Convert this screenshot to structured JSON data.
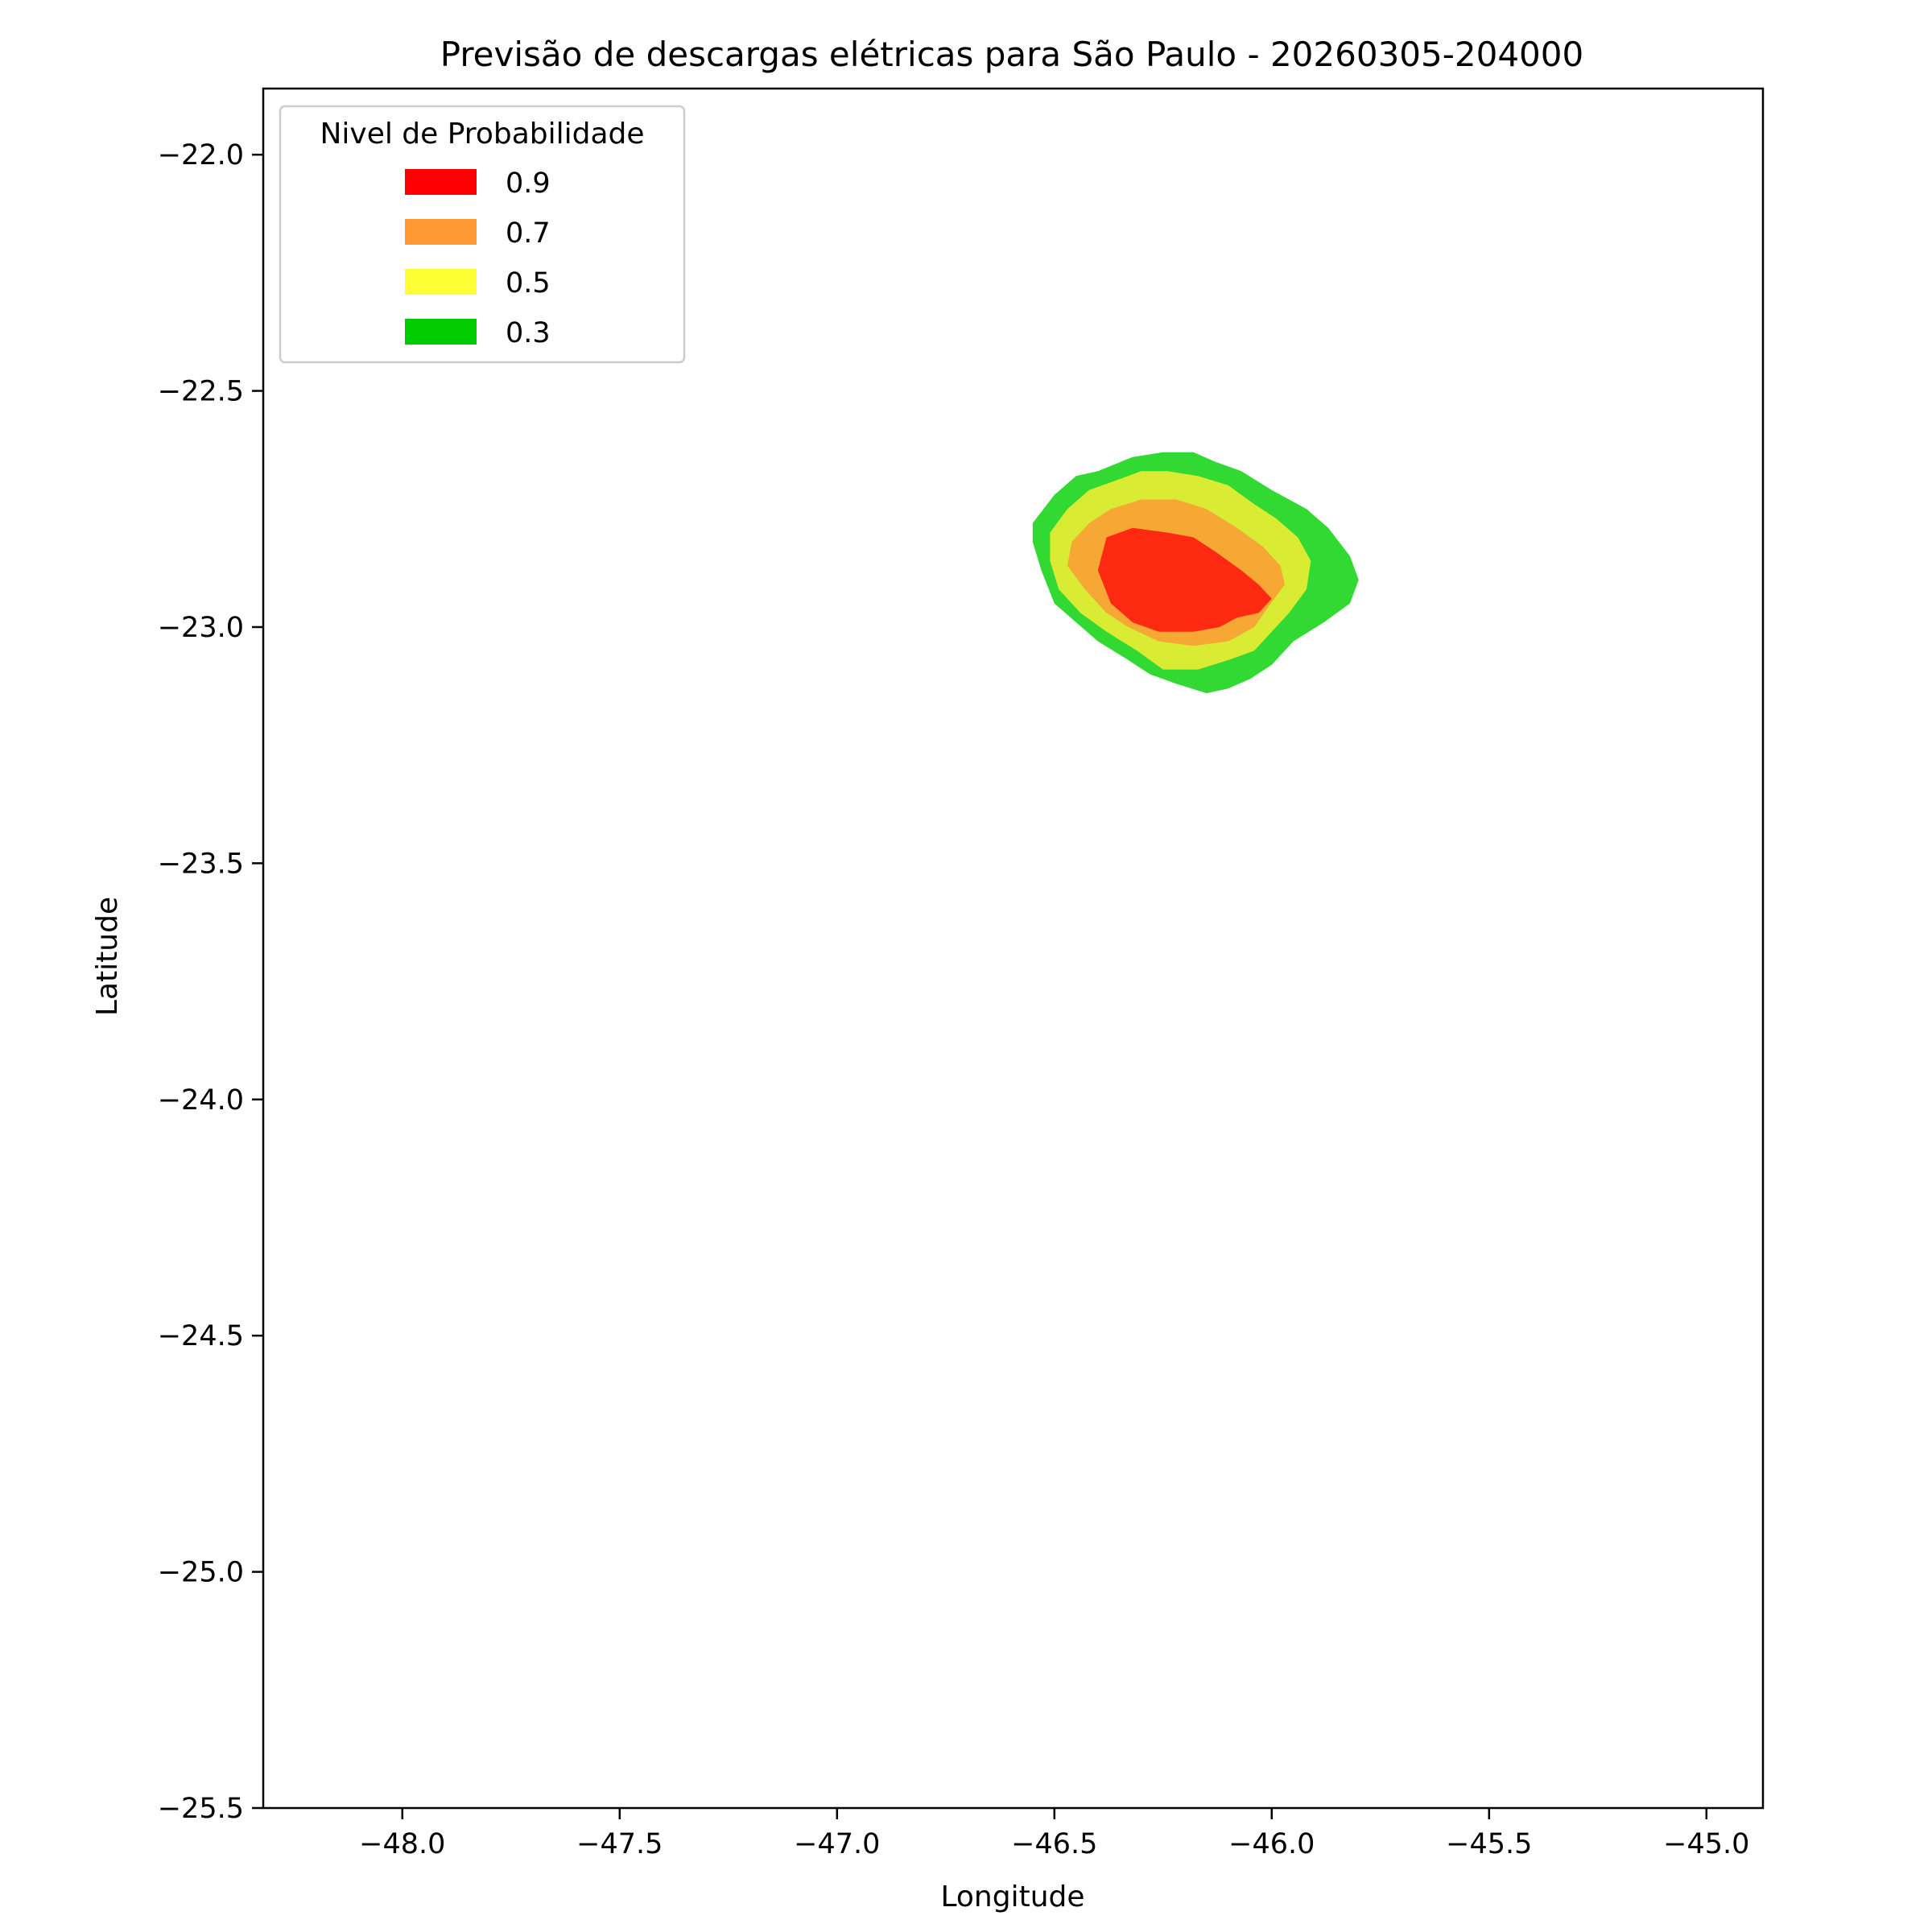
{
  "chart_data": {
    "type": "contourf",
    "title": "Previsão de descargas elétricas para São Paulo - 20260305-204000",
    "xlabel": "Longitude",
    "ylabel": "Latitude",
    "xlim": [
      -48.32,
      -44.87
    ],
    "ylim": [
      -25.5,
      -21.86
    ],
    "xticks": [
      -48.0,
      -47.5,
      -47.0,
      -46.5,
      -46.0,
      -45.5,
      -45.0
    ],
    "yticks": [
      -22.0,
      -22.5,
      -23.0,
      -23.5,
      -24.0,
      -24.5,
      -25.0,
      -25.5
    ],
    "xtick_labels": [
      "−48.0",
      "−47.5",
      "−47.0",
      "−46.5",
      "−46.0",
      "−45.5",
      "−45.0"
    ],
    "ytick_labels": [
      "−22.0",
      "−22.5",
      "−23.0",
      "−23.5",
      "−24.0",
      "−24.5",
      "−25.0",
      "−25.5"
    ],
    "grid": false,
    "legend": {
      "title": "Nivel de Probabilidade",
      "placement": "top-left",
      "entries": [
        {
          "label": "0.9",
          "color": "#ff0000"
        },
        {
          "label": "0.7",
          "color": "#ff9933"
        },
        {
          "label": "0.5",
          "color": "#ffff33"
        },
        {
          "label": "0.3",
          "color": "#00cc00"
        }
      ]
    },
    "levels": [
      {
        "level": "0.3",
        "color": "#33d933",
        "polygon": [
          [
            -46.55,
            -22.78
          ],
          [
            -46.5,
            -22.72
          ],
          [
            -46.45,
            -22.68
          ],
          [
            -46.4,
            -22.67
          ],
          [
            -46.32,
            -22.64
          ],
          [
            -46.25,
            -22.63
          ],
          [
            -46.18,
            -22.63
          ],
          [
            -46.13,
            -22.65
          ],
          [
            -46.07,
            -22.67
          ],
          [
            -46.0,
            -22.71
          ],
          [
            -45.92,
            -22.75
          ],
          [
            -45.87,
            -22.79
          ],
          [
            -45.82,
            -22.85
          ],
          [
            -45.8,
            -22.9
          ],
          [
            -45.82,
            -22.95
          ],
          [
            -45.88,
            -22.99
          ],
          [
            -45.95,
            -23.03
          ],
          [
            -46.0,
            -23.08
          ],
          [
            -46.05,
            -23.11
          ],
          [
            -46.1,
            -23.13
          ],
          [
            -46.15,
            -23.14
          ],
          [
            -46.22,
            -23.12
          ],
          [
            -46.28,
            -23.1
          ],
          [
            -46.33,
            -23.07
          ],
          [
            -46.4,
            -23.03
          ],
          [
            -46.45,
            -22.99
          ],
          [
            -46.5,
            -22.95
          ],
          [
            -46.53,
            -22.88
          ],
          [
            -46.55,
            -22.82
          ]
        ]
      },
      {
        "level": "0.5",
        "color": "#d9eb33",
        "polygon": [
          [
            -46.51,
            -22.8
          ],
          [
            -46.47,
            -22.75
          ],
          [
            -46.42,
            -22.71
          ],
          [
            -46.36,
            -22.69
          ],
          [
            -46.3,
            -22.67
          ],
          [
            -46.24,
            -22.67
          ],
          [
            -46.17,
            -22.68
          ],
          [
            -46.1,
            -22.7
          ],
          [
            -46.04,
            -22.74
          ],
          [
            -45.99,
            -22.77
          ],
          [
            -45.94,
            -22.81
          ],
          [
            -45.91,
            -22.86
          ],
          [
            -45.92,
            -22.92
          ],
          [
            -45.96,
            -22.97
          ],
          [
            -46.0,
            -23.01
          ],
          [
            -46.04,
            -23.05
          ],
          [
            -46.1,
            -23.07
          ],
          [
            -46.17,
            -23.09
          ],
          [
            -46.25,
            -23.09
          ],
          [
            -46.31,
            -23.05
          ],
          [
            -46.38,
            -23.01
          ],
          [
            -46.44,
            -22.97
          ],
          [
            -46.49,
            -22.92
          ],
          [
            -46.51,
            -22.86
          ]
        ]
      },
      {
        "level": "0.7",
        "color": "#f7a733",
        "polygon": [
          [
            -46.46,
            -22.82
          ],
          [
            -46.42,
            -22.78
          ],
          [
            -46.37,
            -22.75
          ],
          [
            -46.3,
            -22.73
          ],
          [
            -46.22,
            -22.73
          ],
          [
            -46.15,
            -22.75
          ],
          [
            -46.08,
            -22.79
          ],
          [
            -46.02,
            -22.83
          ],
          [
            -45.98,
            -22.87
          ],
          [
            -45.97,
            -22.91
          ],
          [
            -46.01,
            -22.96
          ],
          [
            -46.04,
            -23.0
          ],
          [
            -46.1,
            -23.03
          ],
          [
            -46.18,
            -23.04
          ],
          [
            -46.26,
            -23.03
          ],
          [
            -46.33,
            -23.0
          ],
          [
            -46.38,
            -22.97
          ],
          [
            -46.43,
            -22.92
          ],
          [
            -46.47,
            -22.87
          ]
        ]
      },
      {
        "level": "0.9",
        "color": "#ff2a11",
        "polygon": [
          [
            -46.38,
            -22.81
          ],
          [
            -46.32,
            -22.79
          ],
          [
            -46.24,
            -22.8
          ],
          [
            -46.18,
            -22.81
          ],
          [
            -46.13,
            -22.84
          ],
          [
            -46.07,
            -22.88
          ],
          [
            -46.03,
            -22.91
          ],
          [
            -46.0,
            -22.94
          ],
          [
            -46.03,
            -22.97
          ],
          [
            -46.08,
            -22.98
          ],
          [
            -46.12,
            -23.0
          ],
          [
            -46.18,
            -23.01
          ],
          [
            -46.26,
            -23.01
          ],
          [
            -46.32,
            -22.99
          ],
          [
            -46.37,
            -22.95
          ],
          [
            -46.4,
            -22.88
          ]
        ]
      }
    ]
  }
}
